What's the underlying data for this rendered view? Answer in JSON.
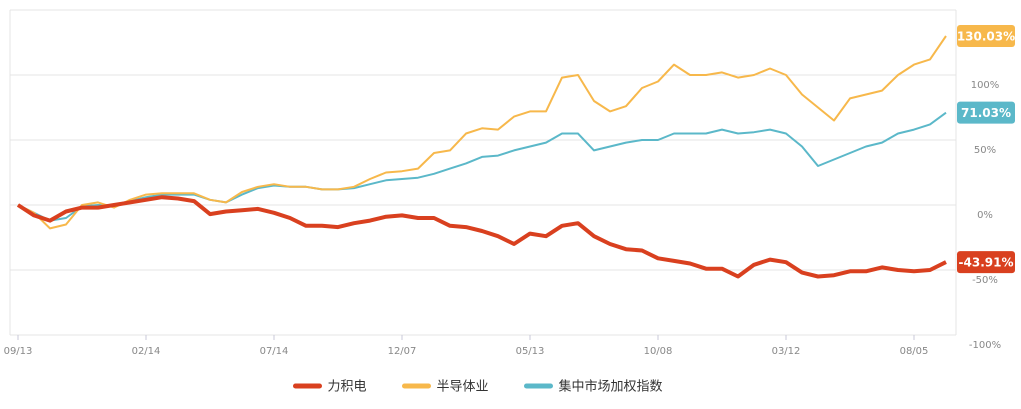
{
  "chart_data": {
    "type": "line",
    "categories": [
      "09/13",
      null,
      null,
      null,
      null,
      null,
      null,
      null,
      "02/14",
      null,
      null,
      null,
      null,
      null,
      null,
      null,
      "07/14",
      null,
      null,
      null,
      null,
      null,
      null,
      null,
      "12/07",
      null,
      null,
      null,
      null,
      null,
      null,
      null,
      "05/13",
      null,
      null,
      null,
      null,
      null,
      null,
      null,
      "10/08",
      null,
      null,
      null,
      null,
      null,
      null,
      null,
      "03/12",
      null,
      null,
      null,
      null,
      null,
      null,
      null,
      "08/05",
      null,
      null
    ],
    "ylim": [
      -100,
      150
    ],
    "yticks": [
      {
        "value": -100,
        "label": "-100%"
      },
      {
        "value": -50,
        "label": "-50%"
      },
      {
        "value": 0,
        "label": "0%"
      },
      {
        "value": 50,
        "label": "50%"
      },
      {
        "value": 100,
        "label": "100%"
      }
    ],
    "grid": true,
    "series": [
      {
        "name": "力积电",
        "color": "#d9401f",
        "values": [
          0,
          -8,
          -12,
          -5,
          -2,
          -2,
          0,
          2,
          4,
          6,
          5,
          3,
          -7,
          -5,
          -4,
          -3,
          -6,
          -10,
          -16,
          -16,
          -17,
          -14,
          -12,
          -9,
          -8,
          -10,
          -10,
          -16,
          -17,
          -20,
          -24,
          -30,
          -22,
          -24,
          -16,
          -14,
          -24,
          -30,
          -34,
          -35,
          -41,
          -43,
          -45,
          -49,
          -49,
          -55,
          -46,
          -42,
          -44,
          -52,
          -55,
          -54,
          -51,
          -51,
          -48,
          -50,
          -51,
          -50,
          -43.91
        ],
        "value_labels": [
          null,
          null,
          null,
          null,
          null,
          null,
          null,
          null,
          null,
          null,
          null,
          null,
          null,
          null,
          null,
          null,
          null,
          null,
          null,
          null,
          null,
          null,
          null,
          null,
          null,
          null,
          null,
          null,
          null,
          null,
          null,
          null,
          null,
          null,
          null,
          null,
          null,
          null,
          null,
          null,
          null,
          null,
          null,
          null,
          null,
          null,
          null,
          null,
          null,
          null,
          null,
          null,
          null,
          null,
          null,
          null,
          null,
          null,
          "-43.91%"
        ]
      },
      {
        "name": "半导体业",
        "color": "#f7b84b",
        "values": [
          0,
          -6,
          -18,
          -15,
          0,
          2,
          -2,
          4,
          8,
          9,
          9,
          9,
          4,
          2,
          10,
          14,
          16,
          14,
          14,
          12,
          12,
          14,
          20,
          25,
          26,
          28,
          40,
          42,
          55,
          59,
          58,
          68,
          72,
          72,
          98,
          100,
          80,
          72,
          76,
          90,
          95,
          108,
          100,
          100,
          102,
          98,
          100,
          105,
          100,
          85,
          75,
          65,
          82,
          85,
          88,
          100,
          108,
          112,
          130.03
        ],
        "value_labels": [
          null,
          null,
          null,
          null,
          null,
          null,
          null,
          null,
          null,
          null,
          null,
          null,
          null,
          null,
          null,
          null,
          null,
          null,
          null,
          null,
          null,
          null,
          null,
          null,
          null,
          null,
          null,
          null,
          null,
          null,
          null,
          null,
          null,
          null,
          null,
          null,
          null,
          null,
          null,
          null,
          null,
          null,
          null,
          null,
          null,
          null,
          null,
          null,
          null,
          null,
          null,
          null,
          null,
          null,
          null,
          null,
          null,
          null,
          "130.03%"
        ]
      },
      {
        "name": "集中市场加权指数",
        "color": "#5bb8c9",
        "values": [
          0,
          -6,
          -12,
          -10,
          -1,
          0,
          0,
          3,
          6,
          8,
          8,
          8,
          4,
          2,
          8,
          13,
          15,
          14,
          14,
          12,
          12,
          13,
          16,
          19,
          20,
          21,
          24,
          28,
          32,
          37,
          38,
          42,
          45,
          48,
          55,
          55,
          42,
          45,
          48,
          50,
          50,
          55,
          55,
          55,
          58,
          55,
          56,
          58,
          55,
          45,
          30,
          35,
          40,
          45,
          48,
          55,
          58,
          62,
          71.03
        ],
        "value_labels": [
          null,
          null,
          null,
          null,
          null,
          null,
          null,
          null,
          null,
          null,
          null,
          null,
          null,
          null,
          null,
          null,
          null,
          null,
          null,
          null,
          null,
          null,
          null,
          null,
          null,
          null,
          null,
          null,
          null,
          null,
          null,
          null,
          null,
          null,
          null,
          null,
          null,
          null,
          null,
          null,
          null,
          null,
          null,
          null,
          null,
          null,
          null,
          null,
          null,
          null,
          null,
          null,
          null,
          null,
          null,
          null,
          null,
          null,
          "71.03%"
        ]
      }
    ]
  }
}
